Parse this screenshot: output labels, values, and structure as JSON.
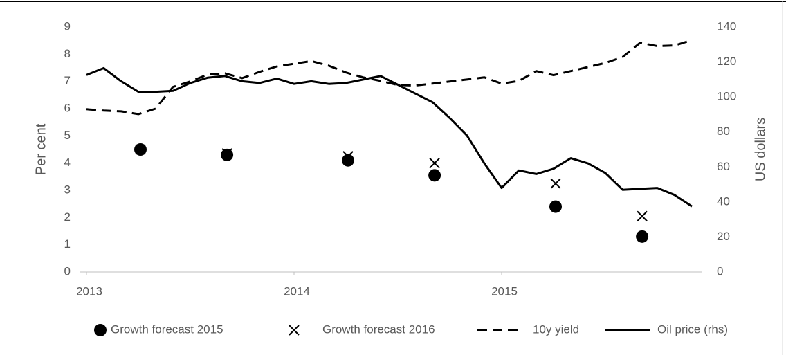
{
  "chart_data": {
    "type": "line",
    "y_label": "Per cent",
    "y2_label": "US dollars",
    "xlim": [
      2013,
      2016
    ],
    "xticks": [
      2013,
      2014,
      2015
    ],
    "ylim": [
      0,
      9
    ],
    "yticks": [
      0,
      1,
      2,
      3,
      4,
      5,
      6,
      7,
      8,
      9
    ],
    "y2lim": [
      0,
      140
    ],
    "y2ticks": [
      0,
      20,
      40,
      60,
      80,
      100,
      120,
      140
    ],
    "grid": false,
    "legend": "bottom",
    "series": [
      {
        "name": "Growth forecast 2015",
        "color": "#000000",
        "mark": "circle",
        "x": [
          2013.26,
          2013.677,
          2014.26,
          2014.677,
          2015.26,
          2015.677
        ],
        "values": [
          4.5,
          4.3,
          4.1,
          3.55,
          2.4,
          1.3
        ]
      },
      {
        "name": "Growth forecast 2016",
        "color": "#000000",
        "mark": "cross",
        "x": [
          2013.26,
          2013.677,
          2014.26,
          2014.677,
          2015.26,
          2015.677
        ],
        "values": [
          4.5,
          4.35,
          4.25,
          4.0,
          3.25,
          2.05
        ]
      },
      {
        "name": "10y yield",
        "color": "#000000",
        "mark": "dashed",
        "x": [
          2013,
          2013.083,
          2013.167,
          2013.25,
          2013.333,
          2013.417,
          2013.5,
          2013.583,
          2013.667,
          2013.75,
          2013.833,
          2013.917,
          2014,
          2014.083,
          2014.167,
          2014.25,
          2014.333,
          2014.417,
          2014.5,
          2014.583,
          2014.667,
          2014.75,
          2014.833,
          2014.917,
          2015,
          2015.083,
          2015.167,
          2015.25,
          2015.333,
          2015.417,
          2015.5,
          2015.583,
          2015.667,
          2015.75,
          2015.833,
          2015.917
        ],
        "values": [
          5.98,
          5.93,
          5.9,
          5.8,
          6.0,
          6.8,
          7.0,
          7.25,
          7.3,
          7.12,
          7.35,
          7.55,
          7.65,
          7.75,
          7.58,
          7.33,
          7.15,
          7.02,
          6.87,
          6.85,
          6.92,
          7.0,
          7.07,
          7.15,
          6.92,
          7.02,
          7.38,
          7.23,
          7.38,
          7.53,
          7.68,
          7.9,
          8.42,
          8.3,
          8.32,
          8.52
        ]
      },
      {
        "name": "Oil price (rhs)",
        "color": "#000000",
        "mark": "solid",
        "axis": "y2",
        "x": [
          2013,
          2013.083,
          2013.167,
          2013.25,
          2013.333,
          2013.417,
          2013.5,
          2013.583,
          2013.667,
          2013.75,
          2013.833,
          2013.917,
          2014,
          2014.083,
          2014.167,
          2014.25,
          2014.333,
          2014.417,
          2014.5,
          2014.583,
          2014.667,
          2014.75,
          2014.833,
          2014.917,
          2015,
          2015.083,
          2015.167,
          2015.25,
          2015.333,
          2015.417,
          2015.5,
          2015.583,
          2015.667,
          2015.75,
          2015.833,
          2015.917
        ],
        "values": [
          112.6,
          116.5,
          109,
          103,
          103,
          103.5,
          108,
          111,
          112,
          109,
          108,
          110.5,
          107.5,
          109,
          107.5,
          108,
          110,
          112,
          107,
          102,
          97,
          88,
          78,
          62,
          48,
          58,
          56,
          59,
          65,
          62,
          56.5,
          47,
          47.5,
          48,
          44,
          37.5
        ]
      }
    ]
  }
}
